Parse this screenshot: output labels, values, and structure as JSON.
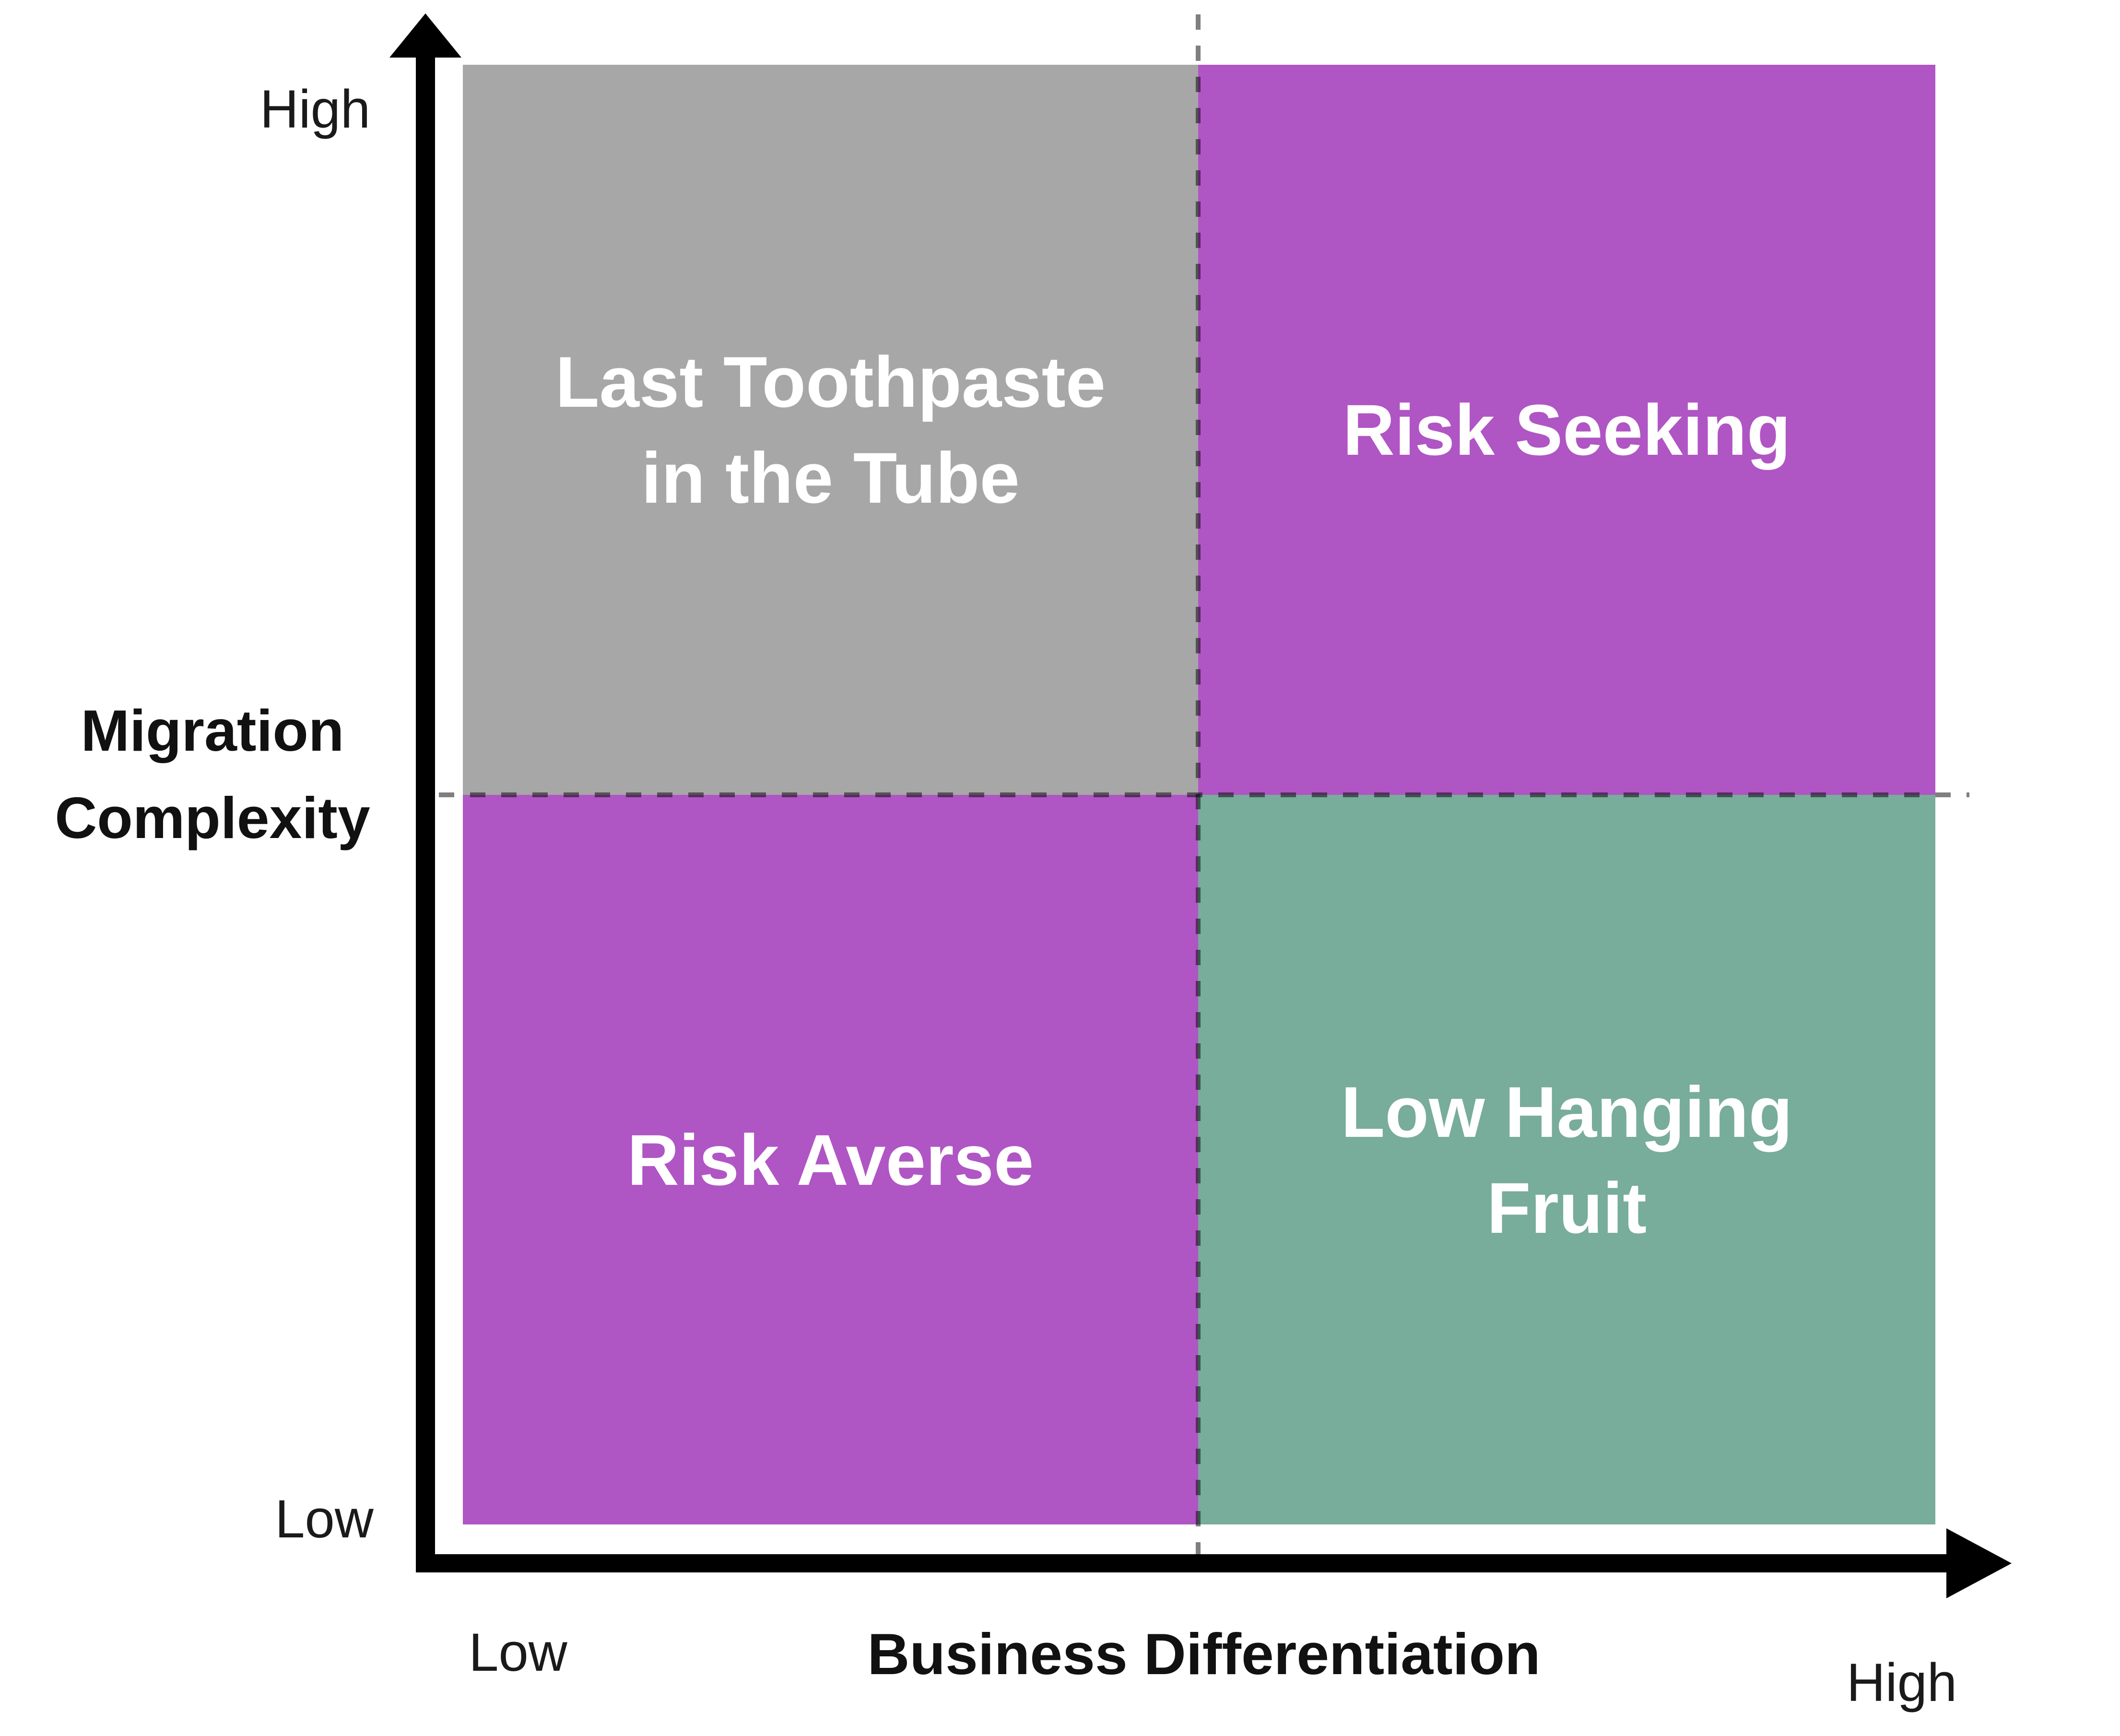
{
  "colors": {
    "quadrant_gray": "#A7A7A7",
    "quadrant_purple": "#B055C4",
    "quadrant_teal": "#78AC9B",
    "axis_black": "#000000",
    "dashed_divider_gray": "#7F7F7F",
    "quadrant_text": "#FFFFFF",
    "axis_text": "#1A1A1A"
  },
  "y_axis": {
    "title_line1": "Migration",
    "title_line2": "Complexity",
    "high_label": "High",
    "low_label": "Low"
  },
  "x_axis": {
    "title": "Business Differentiation",
    "low_label": "Low",
    "high_label": "High"
  },
  "quadrants": {
    "top_left": {
      "line1": "Last Toothpaste",
      "line2": "in the Tube"
    },
    "top_right": {
      "line1": "Risk Seeking",
      "line2": ""
    },
    "bottom_left": {
      "line1": "Risk Averse",
      "line2": ""
    },
    "bottom_right": {
      "line1": "Low Hanging",
      "line2": "Fruit"
    }
  }
}
